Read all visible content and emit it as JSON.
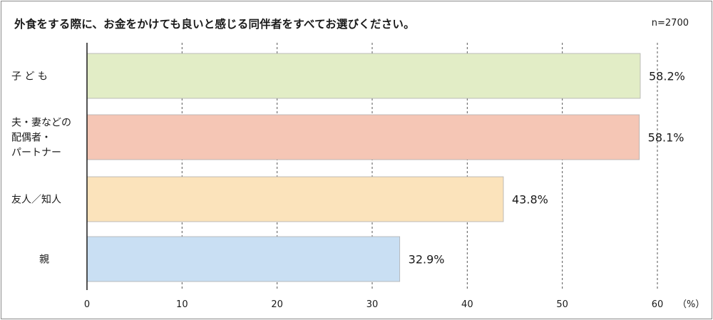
{
  "title": "外食をする際に、お金をかけても良いと感じる同伴者をすべてお選びください。",
  "sample_size": "n=2700",
  "unit_label": "（%）",
  "chart_data": {
    "type": "bar",
    "orientation": "horizontal",
    "categories": [
      [
        "子 ど も"
      ],
      [
        "夫・妻などの",
        "配偶者・",
        "パートナー"
      ],
      [
        "友人／知人"
      ],
      [
        "親"
      ]
    ],
    "values": [
      58.2,
      58.1,
      43.8,
      32.9
    ],
    "value_labels": [
      "58.2%",
      "58.1%",
      "43.8%",
      "32.9%"
    ],
    "colors": [
      "#e2edc6",
      "#f5c6b5",
      "#fbe3bb",
      "#c9dff3"
    ],
    "xlim": [
      0,
      60
    ],
    "xticks": [
      0,
      10,
      20,
      30,
      40,
      50,
      60
    ],
    "grid": "vertical-dashed"
  }
}
